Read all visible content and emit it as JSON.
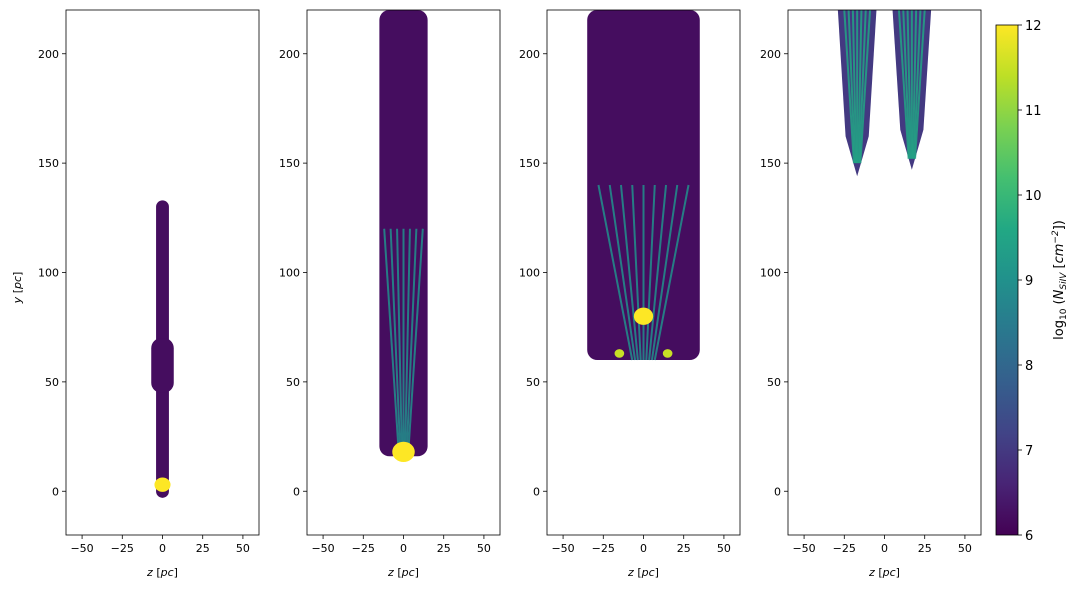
{
  "chart_data": {
    "type": "heatmap",
    "panels": [
      {
        "xlabel": "z [pc]",
        "ylabel": "y [pc]",
        "xlim": [
          -60,
          60
        ],
        "ylim": [
          -20,
          220
        ],
        "xticks": [
          -50,
          -25,
          0,
          25,
          50
        ],
        "yticks": [
          0,
          50,
          100,
          150,
          200
        ],
        "structures": [
          {
            "shape": "stem",
            "z_center": 0,
            "y_bottom": -3,
            "y_top": 133,
            "half_width": 4,
            "log_column_density": 6.2
          },
          {
            "shape": "bulge",
            "z_center": 0,
            "y_bottom": 45,
            "y_top": 70,
            "half_width": 7,
            "log_column_density": 6.2
          },
          {
            "shape": "blob",
            "z_center": 0,
            "y_center": 3,
            "radius": 5,
            "log_column_density": 12
          }
        ]
      },
      {
        "xlabel": "z [pc]",
        "xlim": [
          -60,
          60
        ],
        "ylim": [
          -20,
          220
        ],
        "xticks": [
          -50,
          -25,
          0,
          25,
          50
        ],
        "yticks": [
          0,
          50,
          100,
          150,
          200
        ],
        "structures": [
          {
            "shape": "column",
            "z_center": 0,
            "y_bottom": 16,
            "y_top": 220,
            "half_width": 15,
            "log_column_density": 6.2
          },
          {
            "shape": "filaments",
            "z_center": 0,
            "y_bottom": 18,
            "y_top": 120,
            "spread": 12,
            "log_column_density": 9
          },
          {
            "shape": "blob",
            "z_center": 0,
            "y_center": 18,
            "radius": 7,
            "log_column_density": 12
          }
        ]
      },
      {
        "xlabel": "z [pc]",
        "xlim": [
          -60,
          60
        ],
        "ylim": [
          -20,
          220
        ],
        "xticks": [
          -50,
          -25,
          0,
          25,
          50
        ],
        "yticks": [
          0,
          50,
          100,
          150,
          200
        ],
        "structures": [
          {
            "shape": "column",
            "z_center": 0,
            "y_bottom": 60,
            "y_top": 220,
            "half_width": 35,
            "log_column_density": 6.2
          },
          {
            "shape": "fan",
            "z_center": 0,
            "y_bottom": 60,
            "y_top": 140,
            "spread": 28,
            "log_column_density": 9
          },
          {
            "shape": "blob",
            "z_center": 0,
            "y_center": 80,
            "radius": 6,
            "log_column_density": 12
          },
          {
            "shape": "blob",
            "z_center": -15,
            "y_center": 63,
            "radius": 3,
            "log_column_density": 11.5
          },
          {
            "shape": "blob",
            "z_center": 15,
            "y_center": 63,
            "radius": 3,
            "log_column_density": 11.5
          }
        ]
      },
      {
        "xlabel": "z [pc]",
        "xlim": [
          -60,
          60
        ],
        "ylim": [
          -20,
          220
        ],
        "xticks": [
          -50,
          -25,
          0,
          25,
          50
        ],
        "yticks": [
          0,
          50,
          100,
          150,
          200
        ],
        "structures": [
          {
            "shape": "finger",
            "z_center": -17,
            "y_bottom": 144,
            "y_top": 220,
            "half_width": 12,
            "log_column_density": 7
          },
          {
            "shape": "finger",
            "z_center": 17,
            "y_bottom": 147,
            "y_top": 220,
            "half_width": 12,
            "log_column_density": 7
          },
          {
            "shape": "filaments",
            "z_center": -17,
            "y_bottom": 150,
            "y_top": 220,
            "spread": 8,
            "log_column_density": 9.5
          },
          {
            "shape": "filaments",
            "z_center": 17,
            "y_bottom": 152,
            "y_top": 220,
            "spread": 8,
            "log_column_density": 9.5
          }
        ]
      }
    ],
    "colorbar": {
      "label": "log10 (N_SiIV [cm^-2])",
      "label_main": "log",
      "label_sub": "10",
      "label_rest_prefix": "(N",
      "label_subscript": "SiIV",
      "label_rest_suffix": "[cm",
      "label_sup": "−2",
      "label_close": "])",
      "vmin": 6,
      "vmax": 12,
      "ticks": [
        6,
        7,
        8,
        9,
        10,
        11,
        12
      ],
      "colormap": "viridis"
    },
    "tick_labels_x": [
      "−50",
      "−25",
      "0",
      "25",
      "50"
    ],
    "tick_labels_y": [
      "0",
      "50",
      "100",
      "150",
      "200"
    ],
    "colormap_stops": [
      "#440154",
      "#482475",
      "#414487",
      "#355f8d",
      "#2a788e",
      "#21918c",
      "#22a884",
      "#44bf70",
      "#7ad151",
      "#bddf26",
      "#fde725"
    ]
  }
}
